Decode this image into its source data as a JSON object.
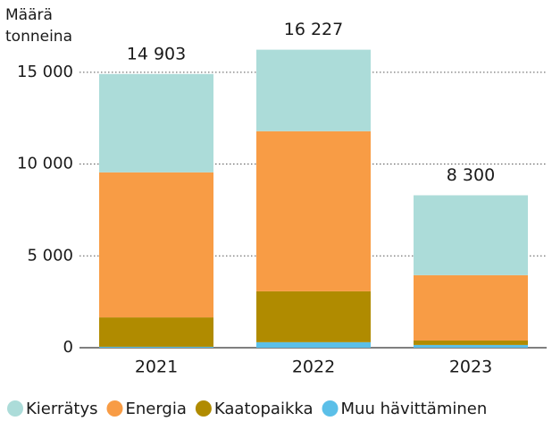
{
  "chart_data": {
    "type": "stacked_bar",
    "y_label": [
      "Määrä",
      "tonneina"
    ],
    "categories": [
      "2021",
      "2022",
      "2023"
    ],
    "series": [
      {
        "name": "Muu hävittäminen",
        "color": "#5bbfe8",
        "values": [
          50,
          300,
          150
        ]
      },
      {
        "name": "Kaatopaikka",
        "color": "#b08b00",
        "values": [
          1600,
          2770,
          240
        ]
      },
      {
        "name": "Energia",
        "color": "#f89c45",
        "values": [
          7900,
          8720,
          3560
        ]
      },
      {
        "name": "Kierrätys",
        "color": "#acdcd9",
        "values": [
          5353,
          4437,
          4350
        ]
      }
    ],
    "totals": [
      14903,
      16227,
      8300
    ],
    "total_labels": [
      "14 903",
      "16 227",
      "8 300"
    ],
    "legend_order": [
      3,
      2,
      1,
      0
    ],
    "ylim": [
      0,
      16500
    ],
    "yticks": [
      0,
      {
        "value": 5000,
        "label": "5 000"
      },
      {
        "value": 10000,
        "label": "10 000"
      },
      {
        "value": 15000,
        "label": "15 000"
      }
    ],
    "grid": true
  }
}
